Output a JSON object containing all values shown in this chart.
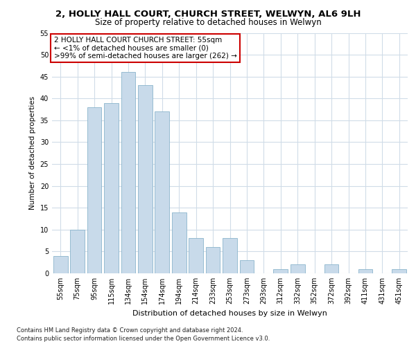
{
  "title1": "2, HOLLY HALL COURT, CHURCH STREET, WELWYN, AL6 9LH",
  "title2": "Size of property relative to detached houses in Welwyn",
  "xlabel": "Distribution of detached houses by size in Welwyn",
  "ylabel": "Number of detached properties",
  "categories": [
    "55sqm",
    "75sqm",
    "95sqm",
    "115sqm",
    "134sqm",
    "154sqm",
    "174sqm",
    "194sqm",
    "214sqm",
    "233sqm",
    "253sqm",
    "273sqm",
    "293sqm",
    "312sqm",
    "332sqm",
    "352sqm",
    "372sqm",
    "392sqm",
    "411sqm",
    "431sqm",
    "451sqm"
  ],
  "values": [
    4,
    10,
    38,
    39,
    46,
    43,
    37,
    14,
    8,
    6,
    8,
    3,
    0,
    1,
    2,
    0,
    2,
    0,
    1,
    0,
    1
  ],
  "bar_color": "#c8daea",
  "bar_edge_color": "#8ab4cc",
  "annotation_text": "2 HOLLY HALL COURT CHURCH STREET: 55sqm\n← <1% of detached houses are smaller (0)\n>99% of semi-detached houses are larger (262) →",
  "annotation_box_color": "#ffffff",
  "annotation_box_edge": "#cc0000",
  "ylim": [
    0,
    55
  ],
  "yticks": [
    0,
    5,
    10,
    15,
    20,
    25,
    30,
    35,
    40,
    45,
    50,
    55
  ],
  "footer1": "Contains HM Land Registry data © Crown copyright and database right 2024.",
  "footer2": "Contains public sector information licensed under the Open Government Licence v3.0.",
  "bg_color": "#ffffff",
  "grid_color": "#d0dce8",
  "title1_fontsize": 9.5,
  "title2_fontsize": 8.5,
  "ylabel_fontsize": 7.5,
  "xlabel_fontsize": 8.0,
  "tick_fontsize": 7.0,
  "annot_fontsize": 7.5,
  "footer_fontsize": 6.0
}
